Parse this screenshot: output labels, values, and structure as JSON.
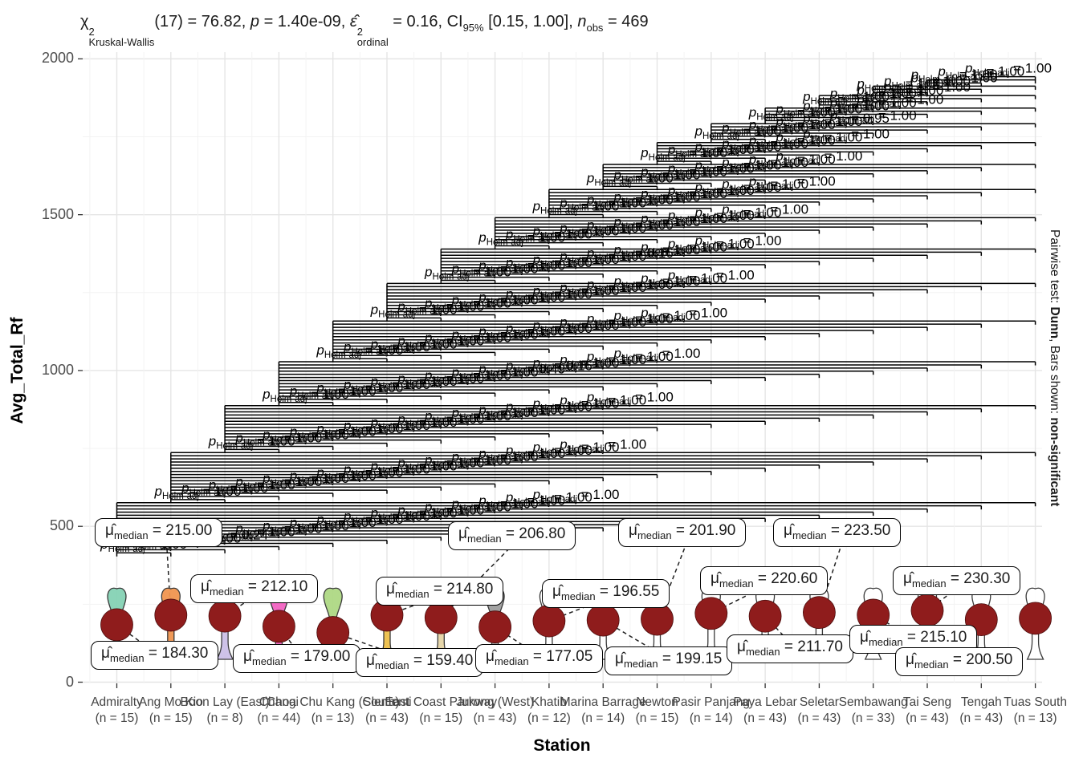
{
  "title_parts": {
    "chi": "χ",
    "chi_sup": "2",
    "chi_sub": "Kruskal-Wallis",
    "seg_df": "(17) = 76.82, ",
    "p_it": "p",
    "seg_p": " = 1.40e-09, ",
    "eps": "ε̂",
    "eps_sup": "2",
    "eps_sub": "ordinal",
    "seg_eps": " = 0.16, ",
    "ci": "CI",
    "ci_sub": "95%",
    "seg_ci": " [0.15, 1.00], ",
    "n_it": "n",
    "n_sub": "obs",
    "seg_n": " = 469"
  },
  "right_caption": {
    "prefix": "Pairwise test: ",
    "method": "Dunn",
    "middle": ", Bars shown: ",
    "emph": "non-significant"
  },
  "x_title": "Station",
  "y_title": "Avg_Total_Rf",
  "p_label_parts": {
    "p": "p",
    "sub": "Holm-adj",
    "eq": " = "
  },
  "mu_label_parts": {
    "mu": "μ̂",
    "sub": "median",
    "eq": " = "
  },
  "colors": {
    "point": "#8f1c1c",
    "point_stroke": "#4a0d0d",
    "bar": "#000000",
    "grid_major": "#e5e5e5",
    "grid_minor": "#f3f3f3",
    "tick": "#333333",
    "violin_stroke": "#3a3a3a"
  },
  "chart_data": {
    "type": "violin",
    "title": "χ²Kruskal-Wallis(17) = 76.82, p = 1.40e-09, ε̂²ordinal = 0.16, CI95% [0.15, 1.00], nobs = 469",
    "xlabel": "Station",
    "ylabel": "Avg_Total_Rf",
    "ylim": [
      0,
      2000
    ],
    "yticks": [
      "0",
      "500",
      "1000",
      "1500",
      "2000"
    ],
    "ytick_values": [
      0,
      500,
      1000,
      1500,
      2000
    ],
    "legend_position": "none",
    "grid": true,
    "stations": [
      {
        "name": "Admiralty",
        "n": 15,
        "median": 184.3,
        "median_label": "184.30",
        "color": "#85d2b4",
        "label_box": [
          113,
          799
        ]
      },
      {
        "name": "Ang Mo Kio",
        "n": 15,
        "median": 215.0,
        "median_label": "215.00",
        "color": "#f0954f",
        "label_box": [
          118,
          646
        ]
      },
      {
        "name": "Boon Lay (East)",
        "n": 8,
        "median": 212.1,
        "median_label": "212.10",
        "color": "#cbc0e8",
        "label_box": [
          237,
          716
        ]
      },
      {
        "name": "Changi",
        "n": 44,
        "median": 179.0,
        "median_label": "179.00",
        "color": "#f263c2",
        "label_box": [
          290,
          803
        ]
      },
      {
        "name": "Choa Chu Kang (South)",
        "n": 13,
        "median": 159.4,
        "median_label": "159.40",
        "color": "#aed884",
        "label_box": [
          443,
          808
        ]
      },
      {
        "name": "Clementi",
        "n": 43,
        "median": 214.8,
        "median_label": "214.80",
        "color": "#eec04a",
        "label_box": [
          468,
          719
        ]
      },
      {
        "name": "East Coast Parkway",
        "n": 15,
        "median": 206.8,
        "median_label": "206.80",
        "color": "#e6d5a7",
        "label_box": [
          558,
          650
        ]
      },
      {
        "name": "Jurong (West)",
        "n": 43,
        "median": 177.05,
        "median_label": "177.05",
        "color": "#9e9e9e",
        "label_box": [
          592,
          803
        ]
      },
      {
        "name": "Khatib",
        "n": 12,
        "median": 196.55,
        "median_label": "196.55",
        "color": "#ffffff",
        "label_box": [
          675,
          722
        ]
      },
      {
        "name": "Marina Barrage",
        "n": 14,
        "median": 199.15,
        "median_label": "199.15",
        "color": "#ffffff",
        "label_box": [
          753,
          806
        ]
      },
      {
        "name": "Newton",
        "n": 15,
        "median": 201.9,
        "median_label": "201.90",
        "color": "#ffffff",
        "label_box": [
          770,
          646
        ]
      },
      {
        "name": "Pasir Panjang",
        "n": 14,
        "median": 220.6,
        "median_label": "220.60",
        "color": "#ffffff",
        "label_box": [
          872,
          706
        ]
      },
      {
        "name": "Paya Lebar",
        "n": 43,
        "median": 211.7,
        "median_label": "211.70",
        "color": "#ffffff",
        "label_box": [
          905,
          791
        ]
      },
      {
        "name": "Seletar",
        "n": 43,
        "median": 223.5,
        "median_label": "223.50",
        "color": "#ffffff",
        "label_box": [
          963,
          646
        ]
      },
      {
        "name": "Sembawang",
        "n": 33,
        "median": 215.1,
        "median_label": "215.10",
        "color": "#ffffff",
        "label_box": [
          1058,
          779
        ]
      },
      {
        "name": "Tai Seng",
        "n": 43,
        "median": 230.3,
        "median_label": "230.30",
        "color": "#ffffff",
        "label_box": [
          1112,
          706
        ]
      },
      {
        "name": "Tengah",
        "n": 43,
        "median": 200.5,
        "median_label": "200.50",
        "color": "#ffffff",
        "label_box": [
          1115,
          807
        ]
      },
      {
        "name": "Tuas South",
        "n": 13,
        "median": 205.0,
        "median_label": null,
        "color": "#ffffff",
        "label_box": null
      }
    ],
    "pairwise": {
      "test": "Dunn",
      "bars_shown": "non-significant",
      "default_p": "1.00",
      "special_p": [
        {
          "i": 0,
          "j": 4,
          "p": "0.24"
        },
        {
          "i": 3,
          "j": 12,
          "p": "0.49"
        },
        {
          "i": 3,
          "j": 13,
          "p": "0.16"
        },
        {
          "i": 6,
          "j": 13,
          "p": "0.16"
        },
        {
          "i": 11,
          "j": 16,
          "p": "0.95"
        }
      ],
      "bars_value_start": 415,
      "bars_value_step": 10.05
    }
  }
}
